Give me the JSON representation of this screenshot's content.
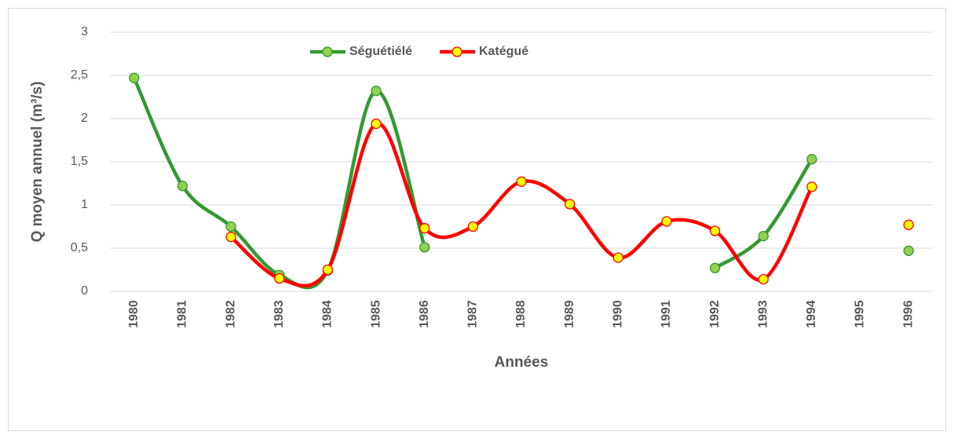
{
  "chart_data": {
    "type": "line",
    "x_label": "Années",
    "y_label": "Q moyen annuel (m³/s)",
    "categories": [
      "1980",
      "1981",
      "1982",
      "1983",
      "1984",
      "1985",
      "1986",
      "1987",
      "1988",
      "1989",
      "1990",
      "1991",
      "1992",
      "1993",
      "1994",
      "1995",
      "1996"
    ],
    "series": [
      {
        "name": "Séguétiélé",
        "color": "#339933",
        "marker_color": "#92d050",
        "values": [
          2.47,
          1.22,
          0.75,
          0.19,
          0.24,
          2.32,
          0.51,
          null,
          null,
          null,
          null,
          null,
          0.27,
          0.64,
          1.53,
          null,
          0.47
        ]
      },
      {
        "name": "Katégué",
        "color": "#ff0000",
        "marker_color": "#ffff00",
        "values": [
          null,
          null,
          0.63,
          0.15,
          0.25,
          1.94,
          0.73,
          0.75,
          1.27,
          1.01,
          0.39,
          0.81,
          0.7,
          0.14,
          1.21,
          null,
          0.77
        ]
      }
    ],
    "ylim": [
      0,
      3
    ],
    "yticks": [
      0,
      {
        "value": 0.5,
        "label": "0,5"
      },
      1,
      {
        "value": 1.5,
        "label": "1,5"
      },
      2,
      {
        "value": 2.5,
        "label": "2,5"
      },
      3
    ],
    "grid": true,
    "legend": "top"
  }
}
